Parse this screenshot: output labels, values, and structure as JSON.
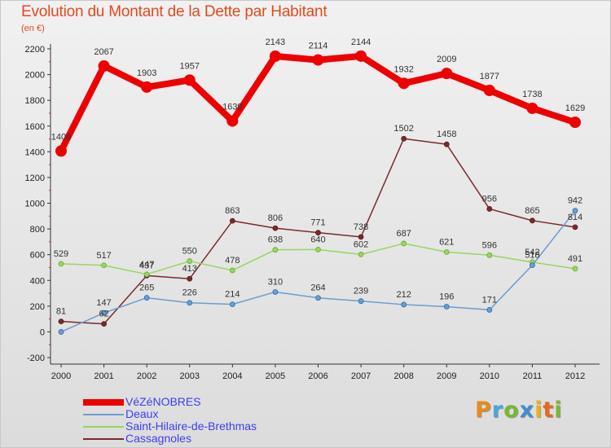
{
  "chart_data": {
    "type": "line",
    "title": "Evolution du Montant de la Dette par Habitant",
    "subtitle": "(en €)",
    "xlabel": "",
    "ylabel": "",
    "x": [
      "2000",
      "2001",
      "2002",
      "2003",
      "2004",
      "2005",
      "2006",
      "2007",
      "2008",
      "2009",
      "2010",
      "2011",
      "2012"
    ],
    "ylim": [
      -200,
      2200
    ],
    "yticks": [
      "-200",
      "0",
      "200",
      "400",
      "600",
      "800",
      "1000",
      "1200",
      "1400",
      "1600",
      "1800",
      "2000",
      "2200"
    ],
    "grid": false,
    "legend_position": "bottom-left",
    "series": [
      {
        "name": "VéZéNOBRES",
        "color": "#ee0000",
        "values": [
          1406,
          2067,
          1903,
          1957,
          1639,
          2143,
          2114,
          2144,
          1932,
          2009,
          1877,
          1738,
          1629
        ],
        "labels": [
          "1406",
          "2067",
          "1903",
          "1957",
          "1639",
          "2143",
          "2114",
          "2144",
          "1932",
          "2009",
          "1877",
          "1738",
          "1629"
        ]
      },
      {
        "name": "Deaux",
        "color": "#6b9dcf",
        "values": [
          0,
          147,
          265,
          226,
          214,
          310,
          264,
          239,
          212,
          196,
          171,
          518,
          942
        ],
        "labels": [
          "",
          "147",
          "265",
          "226",
          "214",
          "310",
          "264",
          "239",
          "212",
          "196",
          "171",
          "518",
          "942"
        ]
      },
      {
        "name": "Saint-Hilaire-de-Brethmas",
        "color": "#98d660",
        "values": [
          529,
          517,
          447,
          550,
          478,
          638,
          640,
          602,
          687,
          621,
          596,
          542,
          491
        ],
        "labels": [
          "529",
          "517",
          "447",
          "550",
          "478",
          "638",
          "640",
          "602",
          "687",
          "621",
          "596",
          "542",
          "491"
        ]
      },
      {
        "name": "Cassagnoles",
        "color": "#7a2a2a",
        "values": [
          81,
          62,
          437,
          413,
          863,
          806,
          771,
          738,
          1502,
          1458,
          956,
          865,
          814
        ],
        "labels": [
          "81",
          "62",
          "437",
          "413",
          "863",
          "806",
          "771",
          "738",
          "1502",
          "1458",
          "956",
          "865",
          "814"
        ]
      }
    ]
  },
  "logo": {
    "letters": [
      "P",
      "r",
      "o",
      "x",
      "i",
      "t",
      "i"
    ],
    "colors": [
      "#e88a1a",
      "#4aa6dd",
      "#78b833",
      "#3b8fd1",
      "#e8b21a",
      "#e8691a",
      "#78b833"
    ]
  }
}
